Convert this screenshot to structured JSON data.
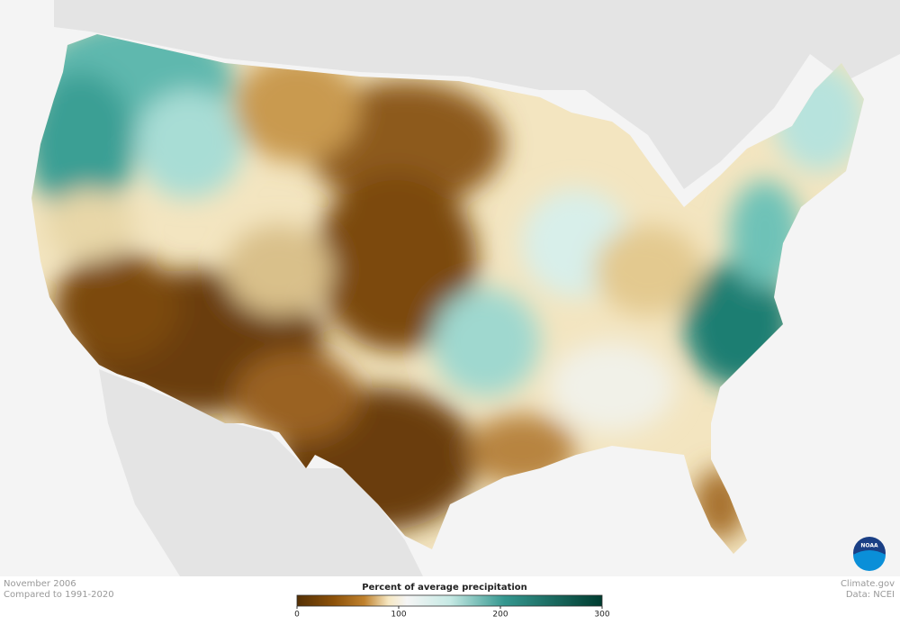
{
  "header": {
    "date": "November 2006",
    "baseline": "Compared to 1991-2020"
  },
  "legend": {
    "title": "Percent of average precipitation",
    "range": [
      0,
      300
    ],
    "ticks": [
      0,
      100,
      200,
      300
    ]
  },
  "credits": {
    "site": "Climate.gov",
    "source": "Data: NCEI"
  },
  "logo": "NOAA"
}
